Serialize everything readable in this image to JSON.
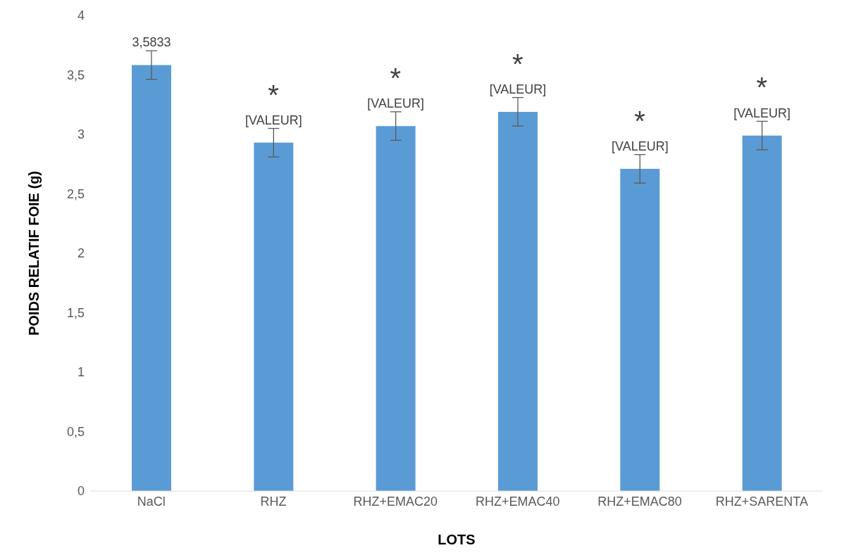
{
  "chart_data": {
    "type": "bar",
    "xlabel": "LOTS",
    "ylabel": "POIDS RELATIF FOIE (g)",
    "categories": [
      "NaCl",
      "RHZ",
      "RHZ+EMAC20",
      "RHZ+EMAC40",
      "RHZ+EMAC80",
      "RHZ+SARENTA"
    ],
    "values": [
      3.5833,
      2.93,
      3.07,
      3.19,
      2.71,
      2.99
    ],
    "errors": [
      0.12,
      0.12,
      0.12,
      0.12,
      0.12,
      0.12
    ],
    "value_labels": [
      "3,5833",
      "[VALEUR]",
      "[VALEUR]",
      "[VALEUR]",
      "[VALEUR]",
      "[VALEUR]"
    ],
    "color": "#5b9bd5",
    "ylim": [
      0,
      4
    ],
    "yticks": [
      0,
      {
        "value": 0.5,
        "label": "0,5"
      },
      1,
      {
        "value": 1.5,
        "label": "1,5"
      },
      2,
      {
        "value": 2.5,
        "label": "2,5"
      },
      3,
      {
        "value": 3.5,
        "label": "3,5"
      },
      4
    ],
    "grid": false,
    "legend": false,
    "annotations": [
      "*",
      "*",
      "*",
      "*",
      "*"
    ]
  }
}
